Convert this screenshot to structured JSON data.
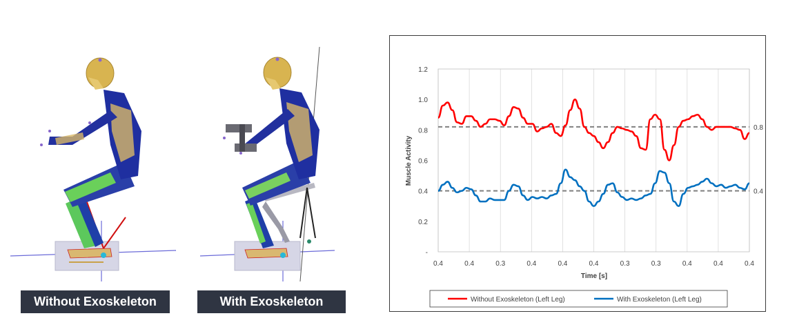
{
  "captions": {
    "left": "Without Exoskeleton",
    "right": "With Exoskeleton"
  },
  "chart_data": {
    "type": "line",
    "xlabel": "Time [s]",
    "ylabel": "Muscle Activity",
    "ylim": [
      0,
      1.2
    ],
    "y_ticks": [
      "-",
      "0.2",
      "0.4",
      "0.6",
      "0.8",
      "1.0",
      "1.2"
    ],
    "x_tick_labels": [
      "0.4",
      "0.4",
      "0.3",
      "0.4",
      "0.4",
      "0.4",
      "0.3",
      "0.3",
      "0.4",
      "0.4",
      "0.4"
    ],
    "grid": "vertical",
    "legend_position": "bottom",
    "reference_lines": [
      {
        "value": 0.82,
        "label": "0.8"
      },
      {
        "value": 0.4,
        "label": "0.4"
      }
    ],
    "series": [
      {
        "name": "Without Exoskeleton (Left Leg)",
        "color": "#ff0000",
        "values": [
          0.88,
          0.96,
          0.98,
          0.93,
          0.85,
          0.84,
          0.89,
          0.89,
          0.86,
          0.82,
          0.84,
          0.87,
          0.87,
          0.86,
          0.83,
          0.89,
          0.95,
          0.94,
          0.88,
          0.84,
          0.84,
          0.79,
          0.81,
          0.82,
          0.84,
          0.78,
          0.76,
          0.83,
          0.93,
          1.0,
          0.94,
          0.82,
          0.78,
          0.76,
          0.72,
          0.68,
          0.72,
          0.78,
          0.82,
          0.81,
          0.8,
          0.79,
          0.76,
          0.68,
          0.67,
          0.87,
          0.9,
          0.87,
          0.67,
          0.6,
          0.7,
          0.82,
          0.86,
          0.87,
          0.89,
          0.9,
          0.87,
          0.82,
          0.8,
          0.82,
          0.82,
          0.82,
          0.82,
          0.81,
          0.8,
          0.74,
          0.78
        ]
      },
      {
        "name": "With Exoskeleton (Left Leg)",
        "color": "#0070c0",
        "values": [
          0.4,
          0.44,
          0.46,
          0.42,
          0.39,
          0.4,
          0.42,
          0.41,
          0.37,
          0.33,
          0.33,
          0.35,
          0.34,
          0.34,
          0.34,
          0.4,
          0.44,
          0.43,
          0.37,
          0.34,
          0.36,
          0.35,
          0.36,
          0.35,
          0.37,
          0.38,
          0.45,
          0.54,
          0.49,
          0.47,
          0.43,
          0.4,
          0.33,
          0.3,
          0.33,
          0.38,
          0.44,
          0.45,
          0.39,
          0.36,
          0.34,
          0.35,
          0.34,
          0.35,
          0.37,
          0.38,
          0.45,
          0.53,
          0.52,
          0.45,
          0.33,
          0.3,
          0.38,
          0.42,
          0.43,
          0.44,
          0.46,
          0.48,
          0.45,
          0.43,
          0.44,
          0.42,
          0.43,
          0.44,
          0.42,
          0.41,
          0.45
        ]
      }
    ]
  }
}
